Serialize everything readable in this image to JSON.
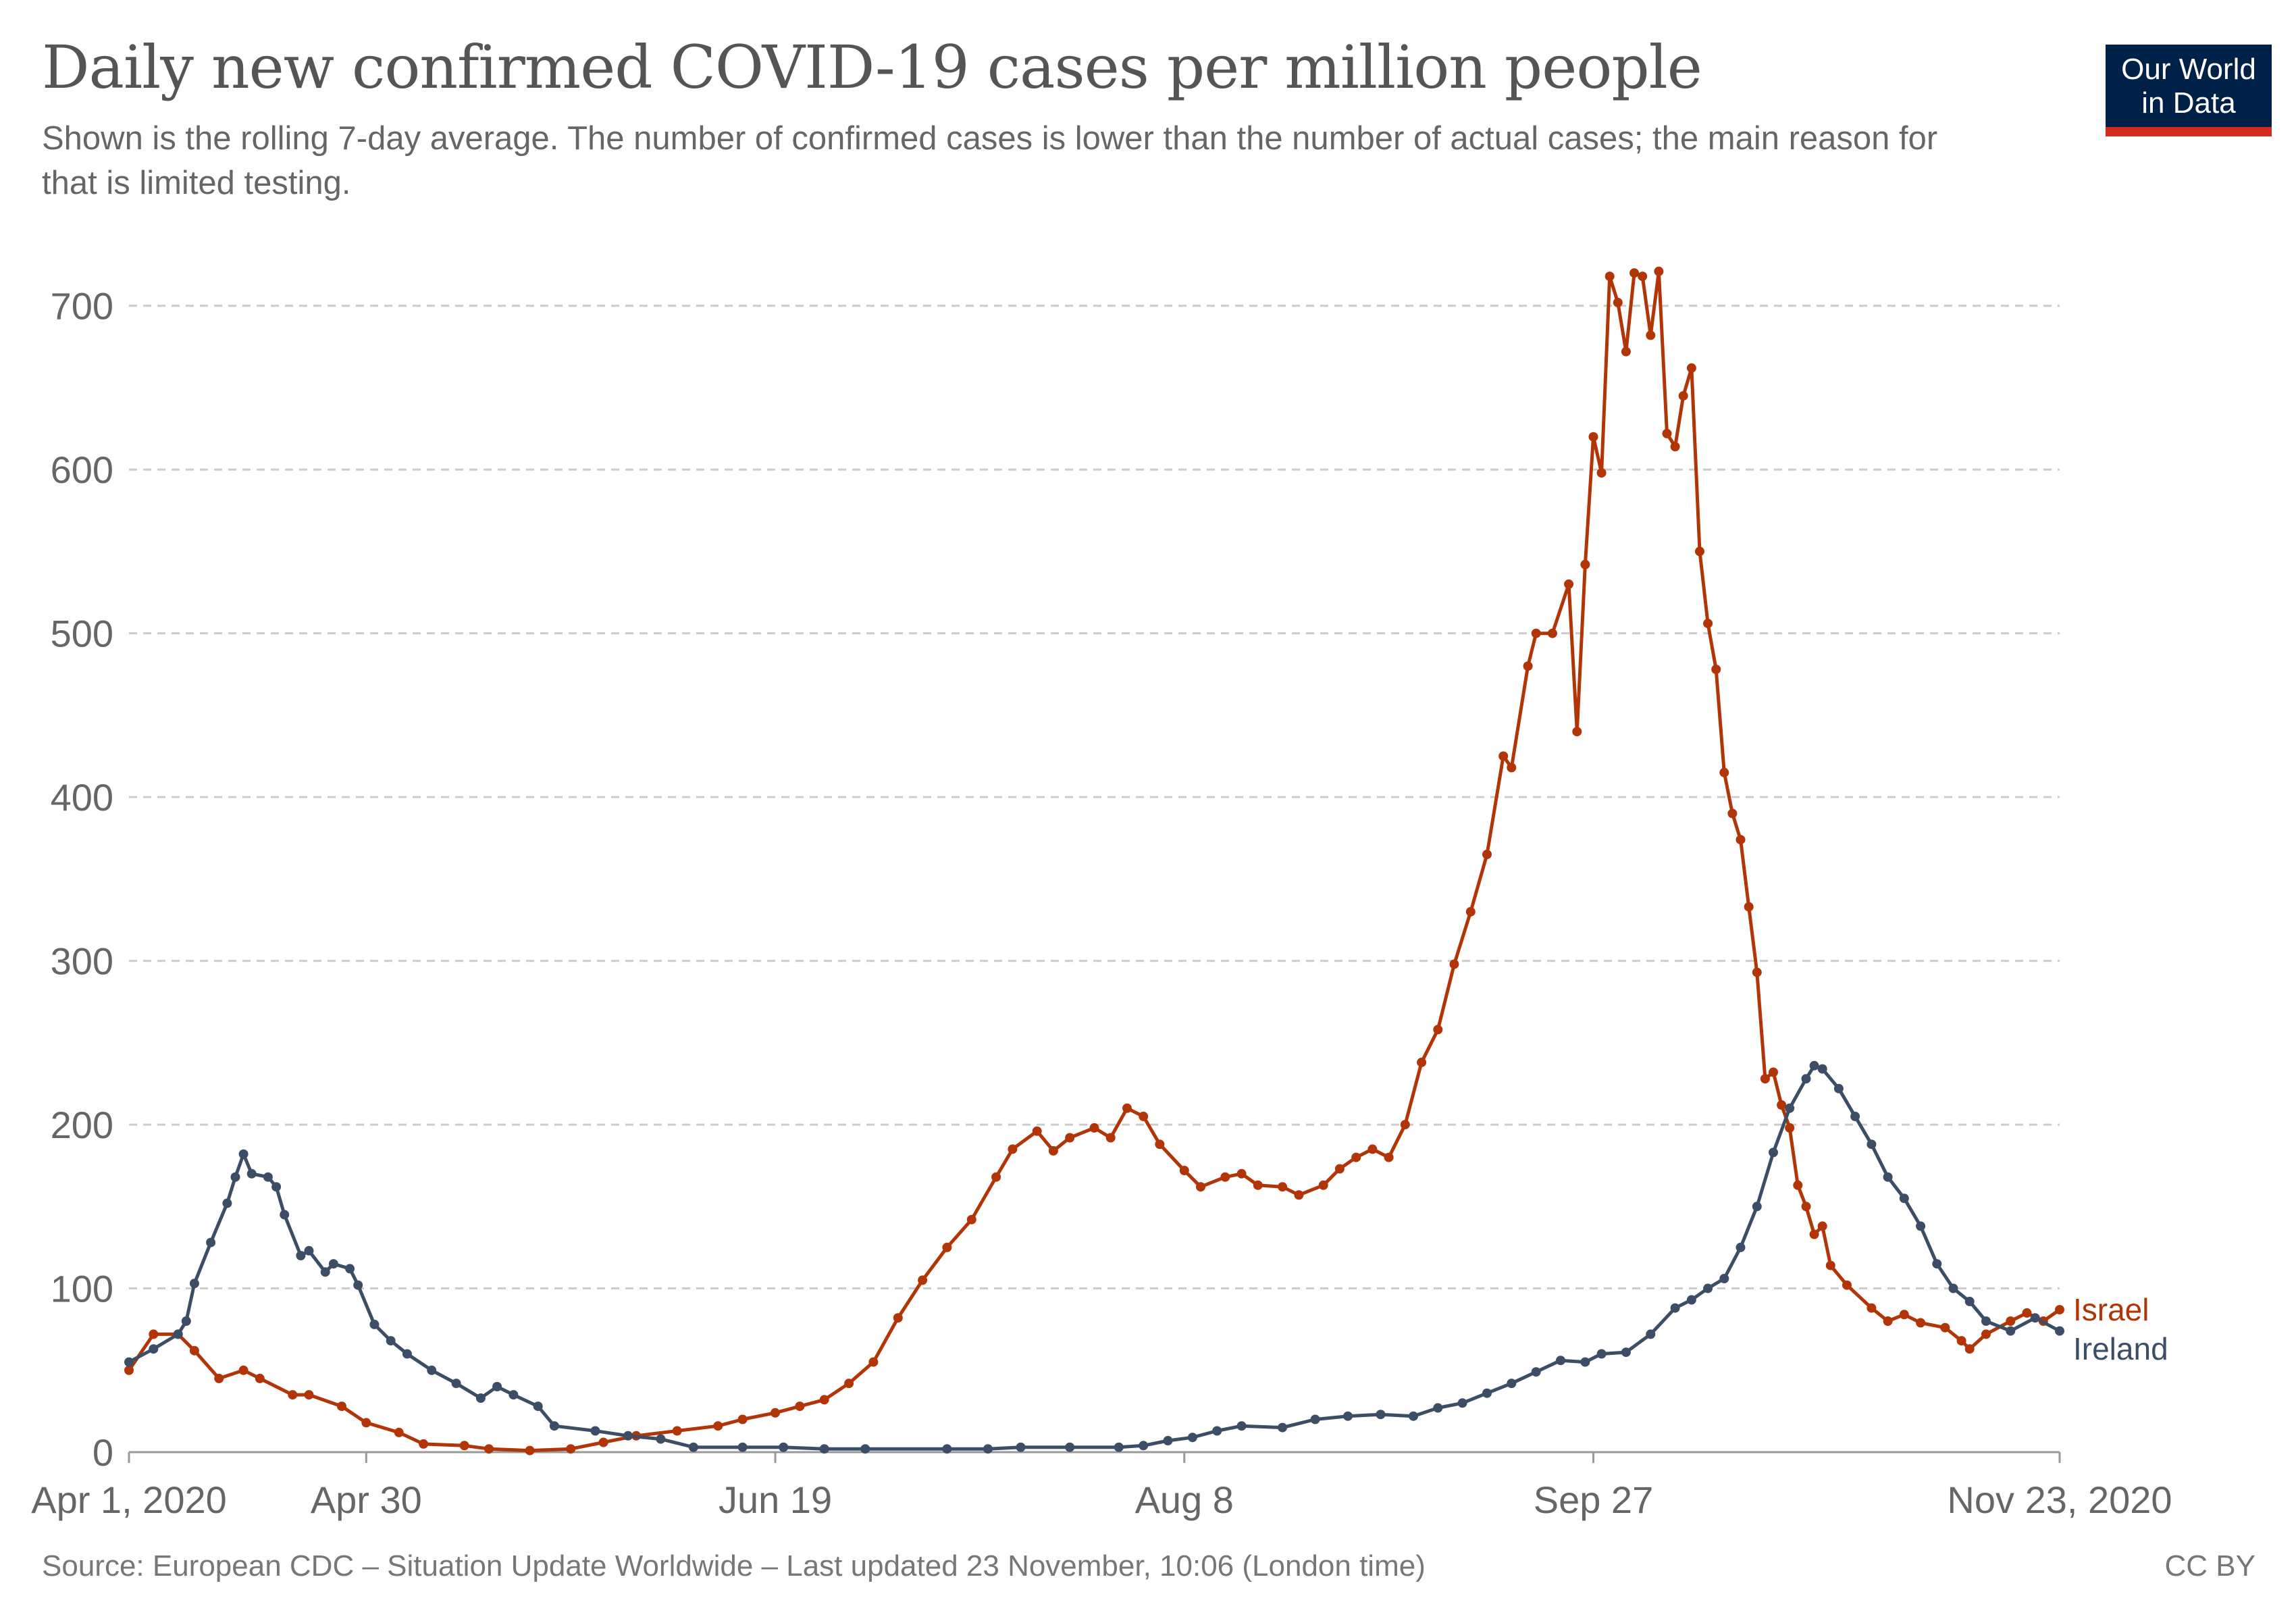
{
  "header": {
    "title": "Daily new confirmed COVID-19 cases per million people",
    "subtitle": "Shown is the rolling 7-day average. The number of confirmed cases is lower than the number of actual cases; the main reason for that is limited testing."
  },
  "logo": {
    "line1": "Our World",
    "line2": "in Data",
    "bg_color": "#002147",
    "accent_color": "#d42b21"
  },
  "footer": {
    "source": "Source: European CDC – Situation Update Worldwide – Last updated 23 November, 10:06 (London time)",
    "license": "CC BY"
  },
  "chart_data": {
    "type": "line",
    "title": "Daily new confirmed COVID-19 cases per million people",
    "x_start": "2020-04-01",
    "x_end": "2020-11-23",
    "x_ticks": [
      {
        "date": "2020-04-01",
        "label": "Apr 1, 2020"
      },
      {
        "date": "2020-04-30",
        "label": "Apr 30"
      },
      {
        "date": "2020-06-19",
        "label": "Jun 19"
      },
      {
        "date": "2020-08-08",
        "label": "Aug 8"
      },
      {
        "date": "2020-09-27",
        "label": "Sep 27"
      },
      {
        "date": "2020-11-23",
        "label": "Nov 23, 2020"
      }
    ],
    "y_ticks": [
      0,
      100,
      200,
      300,
      400,
      500,
      600,
      700
    ],
    "ylim": [
      0,
      730
    ],
    "grid": "horizontal dashed",
    "legend": "end-of-line labels",
    "series": [
      {
        "name": "Israel",
        "color": "#b13507",
        "points": [
          [
            "2020-04-01",
            50
          ],
          [
            "2020-04-04",
            72
          ],
          [
            "2020-04-07",
            72
          ],
          [
            "2020-04-09",
            62
          ],
          [
            "2020-04-12",
            45
          ],
          [
            "2020-04-15",
            50
          ],
          [
            "2020-04-17",
            45
          ],
          [
            "2020-04-21",
            35
          ],
          [
            "2020-04-23",
            35
          ],
          [
            "2020-04-27",
            28
          ],
          [
            "2020-04-30",
            18
          ],
          [
            "2020-05-04",
            12
          ],
          [
            "2020-05-07",
            5
          ],
          [
            "2020-05-12",
            4
          ],
          [
            "2020-05-15",
            2
          ],
          [
            "2020-05-20",
            1
          ],
          [
            "2020-05-25",
            2
          ],
          [
            "2020-05-29",
            6
          ],
          [
            "2020-06-02",
            10
          ],
          [
            "2020-06-07",
            13
          ],
          [
            "2020-06-12",
            16
          ],
          [
            "2020-06-15",
            20
          ],
          [
            "2020-06-19",
            24
          ],
          [
            "2020-06-22",
            28
          ],
          [
            "2020-06-25",
            32
          ],
          [
            "2020-06-28",
            42
          ],
          [
            "2020-07-01",
            55
          ],
          [
            "2020-07-04",
            82
          ],
          [
            "2020-07-07",
            105
          ],
          [
            "2020-07-10",
            125
          ],
          [
            "2020-07-13",
            142
          ],
          [
            "2020-07-16",
            168
          ],
          [
            "2020-07-18",
            185
          ],
          [
            "2020-07-21",
            196
          ],
          [
            "2020-07-23",
            184
          ],
          [
            "2020-07-25",
            192
          ],
          [
            "2020-07-28",
            198
          ],
          [
            "2020-07-30",
            192
          ],
          [
            "2020-08-01",
            210
          ],
          [
            "2020-08-03",
            205
          ],
          [
            "2020-08-05",
            188
          ],
          [
            "2020-08-08",
            172
          ],
          [
            "2020-08-10",
            162
          ],
          [
            "2020-08-13",
            168
          ],
          [
            "2020-08-15",
            170
          ],
          [
            "2020-08-17",
            163
          ],
          [
            "2020-08-20",
            162
          ],
          [
            "2020-08-22",
            157
          ],
          [
            "2020-08-25",
            163
          ],
          [
            "2020-08-27",
            173
          ],
          [
            "2020-08-29",
            180
          ],
          [
            "2020-08-31",
            185
          ],
          [
            "2020-09-02",
            180
          ],
          [
            "2020-09-04",
            200
          ],
          [
            "2020-09-06",
            238
          ],
          [
            "2020-09-08",
            258
          ],
          [
            "2020-09-10",
            298
          ],
          [
            "2020-09-12",
            330
          ],
          [
            "2020-09-14",
            365
          ],
          [
            "2020-09-16",
            425
          ],
          [
            "2020-09-17",
            418
          ],
          [
            "2020-09-19",
            480
          ],
          [
            "2020-09-20",
            500
          ],
          [
            "2020-09-22",
            500
          ],
          [
            "2020-09-24",
            530
          ],
          [
            "2020-09-25",
            440
          ],
          [
            "2020-09-26",
            542
          ],
          [
            "2020-09-27",
            620
          ],
          [
            "2020-09-28",
            598
          ],
          [
            "2020-09-29",
            718
          ],
          [
            "2020-09-30",
            702
          ],
          [
            "2020-10-01",
            672
          ],
          [
            "2020-10-02",
            720
          ],
          [
            "2020-10-03",
            718
          ],
          [
            "2020-10-04",
            682
          ],
          [
            "2020-10-05",
            721
          ],
          [
            "2020-10-06",
            622
          ],
          [
            "2020-10-07",
            614
          ],
          [
            "2020-10-08",
            645
          ],
          [
            "2020-10-09",
            662
          ],
          [
            "2020-10-10",
            550
          ],
          [
            "2020-10-11",
            506
          ],
          [
            "2020-10-12",
            478
          ],
          [
            "2020-10-13",
            415
          ],
          [
            "2020-10-14",
            390
          ],
          [
            "2020-10-15",
            374
          ],
          [
            "2020-10-16",
            333
          ],
          [
            "2020-10-17",
            293
          ],
          [
            "2020-10-18",
            228
          ],
          [
            "2020-10-19",
            232
          ],
          [
            "2020-10-20",
            212
          ],
          [
            "2020-10-21",
            198
          ],
          [
            "2020-10-22",
            163
          ],
          [
            "2020-10-23",
            150
          ],
          [
            "2020-10-24",
            133
          ],
          [
            "2020-10-25",
            138
          ],
          [
            "2020-10-26",
            114
          ],
          [
            "2020-10-28",
            102
          ],
          [
            "2020-10-31",
            88
          ],
          [
            "2020-11-02",
            80
          ],
          [
            "2020-11-04",
            84
          ],
          [
            "2020-11-06",
            79
          ],
          [
            "2020-11-09",
            76
          ],
          [
            "2020-11-11",
            68
          ],
          [
            "2020-11-12",
            63
          ],
          [
            "2020-11-14",
            72
          ],
          [
            "2020-11-17",
            80
          ],
          [
            "2020-11-19",
            85
          ],
          [
            "2020-11-21",
            80
          ],
          [
            "2020-11-23",
            87
          ]
        ]
      },
      {
        "name": "Ireland",
        "color": "#3c4e66",
        "points": [
          [
            "2020-04-01",
            55
          ],
          [
            "2020-04-04",
            63
          ],
          [
            "2020-04-07",
            72
          ],
          [
            "2020-04-08",
            80
          ],
          [
            "2020-04-09",
            103
          ],
          [
            "2020-04-11",
            128
          ],
          [
            "2020-04-13",
            152
          ],
          [
            "2020-04-14",
            168
          ],
          [
            "2020-04-15",
            182
          ],
          [
            "2020-04-16",
            170
          ],
          [
            "2020-04-18",
            168
          ],
          [
            "2020-04-19",
            162
          ],
          [
            "2020-04-20",
            145
          ],
          [
            "2020-04-22",
            120
          ],
          [
            "2020-04-23",
            123
          ],
          [
            "2020-04-25",
            110
          ],
          [
            "2020-04-26",
            115
          ],
          [
            "2020-04-28",
            112
          ],
          [
            "2020-04-29",
            102
          ],
          [
            "2020-05-01",
            78
          ],
          [
            "2020-05-03",
            68
          ],
          [
            "2020-05-05",
            60
          ],
          [
            "2020-05-08",
            50
          ],
          [
            "2020-05-11",
            42
          ],
          [
            "2020-05-14",
            33
          ],
          [
            "2020-05-16",
            40
          ],
          [
            "2020-05-18",
            35
          ],
          [
            "2020-05-21",
            28
          ],
          [
            "2020-05-23",
            16
          ],
          [
            "2020-05-28",
            13
          ],
          [
            "2020-06-01",
            10
          ],
          [
            "2020-06-05",
            8
          ],
          [
            "2020-06-09",
            3
          ],
          [
            "2020-06-15",
            3
          ],
          [
            "2020-06-20",
            3
          ],
          [
            "2020-06-25",
            2
          ],
          [
            "2020-06-30",
            2
          ],
          [
            "2020-07-10",
            2
          ],
          [
            "2020-07-15",
            2
          ],
          [
            "2020-07-19",
            3
          ],
          [
            "2020-07-25",
            3
          ],
          [
            "2020-07-31",
            3
          ],
          [
            "2020-08-03",
            4
          ],
          [
            "2020-08-06",
            7
          ],
          [
            "2020-08-09",
            9
          ],
          [
            "2020-08-12",
            13
          ],
          [
            "2020-08-15",
            16
          ],
          [
            "2020-08-20",
            15
          ],
          [
            "2020-08-24",
            20
          ],
          [
            "2020-08-28",
            22
          ],
          [
            "2020-09-01",
            23
          ],
          [
            "2020-09-05",
            22
          ],
          [
            "2020-09-08",
            27
          ],
          [
            "2020-09-11",
            30
          ],
          [
            "2020-09-14",
            36
          ],
          [
            "2020-09-17",
            42
          ],
          [
            "2020-09-20",
            49
          ],
          [
            "2020-09-23",
            56
          ],
          [
            "2020-09-26",
            55
          ],
          [
            "2020-09-28",
            60
          ],
          [
            "2020-10-01",
            61
          ],
          [
            "2020-10-04",
            72
          ],
          [
            "2020-10-07",
            88
          ],
          [
            "2020-10-09",
            93
          ],
          [
            "2020-10-11",
            100
          ],
          [
            "2020-10-13",
            106
          ],
          [
            "2020-10-15",
            125
          ],
          [
            "2020-10-17",
            150
          ],
          [
            "2020-10-19",
            183
          ],
          [
            "2020-10-21",
            210
          ],
          [
            "2020-10-23",
            228
          ],
          [
            "2020-10-24",
            236
          ],
          [
            "2020-10-25",
            234
          ],
          [
            "2020-10-27",
            222
          ],
          [
            "2020-10-29",
            205
          ],
          [
            "2020-10-31",
            188
          ],
          [
            "2020-11-02",
            168
          ],
          [
            "2020-11-04",
            155
          ],
          [
            "2020-11-06",
            138
          ],
          [
            "2020-11-08",
            115
          ],
          [
            "2020-11-10",
            100
          ],
          [
            "2020-11-12",
            92
          ],
          [
            "2020-11-14",
            80
          ],
          [
            "2020-11-17",
            74
          ],
          [
            "2020-11-20",
            82
          ],
          [
            "2020-11-23",
            74
          ]
        ]
      }
    ]
  }
}
